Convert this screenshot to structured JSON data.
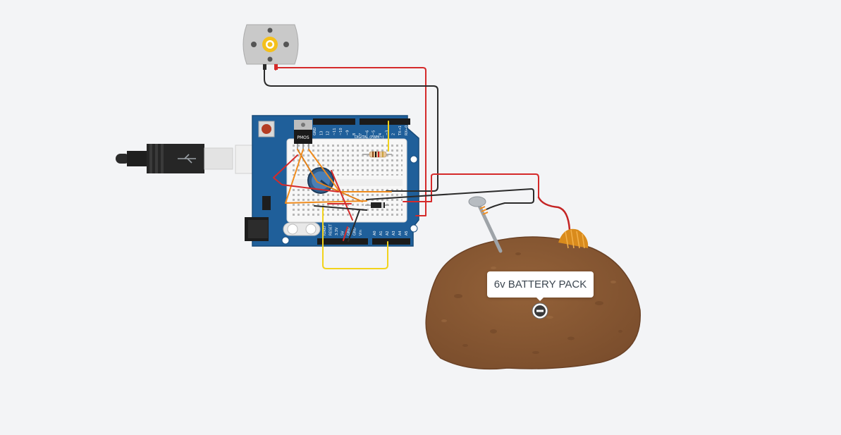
{
  "tooltip": {
    "label": "6v BATTERY PACK"
  },
  "arduino": {
    "regulator_label": "PMOS",
    "digital_header_label": "DIGITAL (PWM~)",
    "digital_pins": [
      "GND",
      "13",
      "12",
      "~11",
      "~10",
      "~9",
      "8",
      "7",
      "~6",
      "~5",
      "4",
      "~3",
      "2",
      "TX→1",
      "RX←0"
    ],
    "power_pins": [
      "IOREF",
      "RESET",
      "3.3V",
      "5V",
      "GND",
      "GND",
      "Vin"
    ],
    "analog_pins": [
      "A0",
      "A1",
      "A2",
      "A3",
      "A4",
      "A5"
    ]
  },
  "icons": {
    "motor": "dc-motor-icon",
    "usb": "usb-cable-icon",
    "potentiometer": "potentiometer-icon",
    "battery_terminal": "minus-terminal-icon"
  },
  "colors": {
    "background": "#f3f4f6",
    "board": "#1f5f9a",
    "red_wire": "#d52a2a",
    "black_wire": "#2b2b2b",
    "orange_wire": "#f08c1d",
    "yellow_wire": "#f2d31b",
    "potato": "#8a5a36"
  }
}
